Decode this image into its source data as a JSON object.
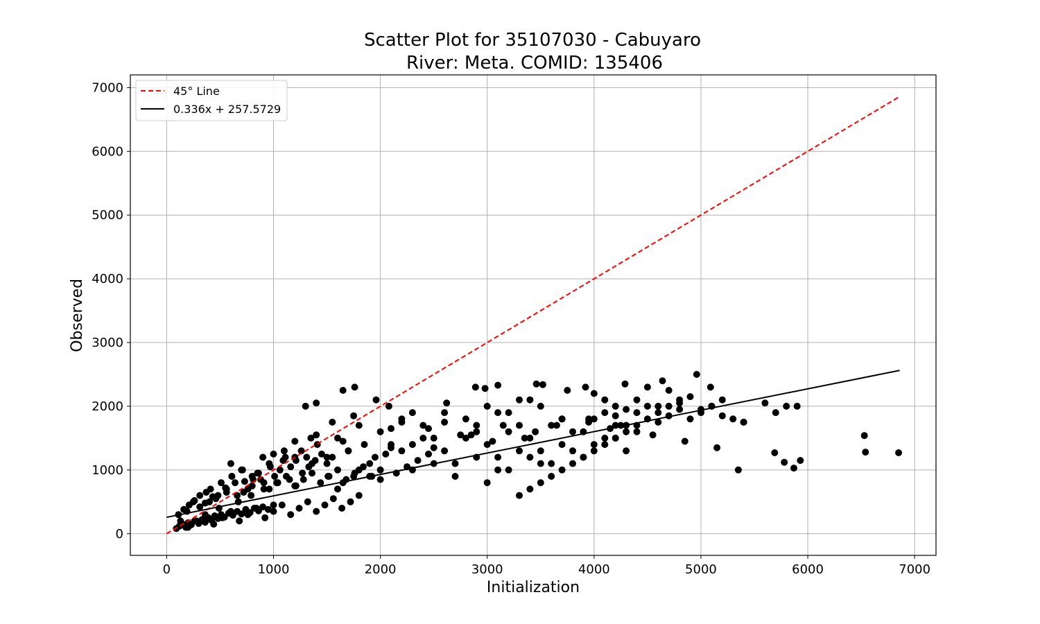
{
  "chart_data": {
    "type": "scatter",
    "title": [
      "Scatter Plot for 35107030 - Cabuyaro",
      "River: Meta. COMID: 135406"
    ],
    "xlabel": "Initialization",
    "ylabel": "Observed",
    "xlim": [
      -340,
      7200
    ],
    "ylim": [
      -340,
      7200
    ],
    "xticks": [
      0,
      1000,
      2000,
      3000,
      4000,
      5000,
      6000,
      7000
    ],
    "yticks": [
      0,
      1000,
      2000,
      3000,
      4000,
      5000,
      6000,
      7000
    ],
    "grid": true,
    "legend": {
      "placement": "top-left",
      "entries": [
        {
          "label": "45° Line",
          "color": "#ff0000",
          "style": "dashed"
        },
        {
          "label": "0.336x + 257.5729",
          "color": "#000000",
          "style": "solid"
        }
      ]
    },
    "lines": [
      {
        "name": "45° Line",
        "x": [
          0,
          6860
        ],
        "y": [
          0,
          6860
        ],
        "color": "#ff0000",
        "style": "dashed"
      },
      {
        "name": "0.336x + 257.5729",
        "x": [
          0,
          6860
        ],
        "y": [
          257.57,
          2562.5
        ],
        "color": "#000000",
        "style": "solid"
      }
    ],
    "series": [
      {
        "color": "#000000",
        "x": [
          90,
          120,
          150,
          180,
          200,
          230,
          260,
          300,
          330,
          360,
          390,
          420,
          450,
          480,
          510,
          540,
          580,
          620,
          660,
          700,
          740,
          780,
          820,
          860,
          900,
          950,
          1000,
          110,
          160,
          210,
          260,
          310,
          360,
          410,
          460,
          510,
          560,
          610,
          660,
          710,
          760,
          810,
          860,
          910,
          960,
          1010,
          1060,
          1110,
          1160,
          1210,
          1260,
          1310,
          1360,
          1410,
          130,
          190,
          250,
          310,
          370,
          430,
          490,
          550,
          610,
          670,
          730,
          790,
          850,
          910,
          970,
          1030,
          1090,
          1150,
          1210,
          1270,
          1330,
          1390,
          1450,
          1510,
          200,
          280,
          360,
          440,
          520,
          600,
          680,
          760,
          840,
          920,
          1000,
          1080,
          1160,
          1240,
          1320,
          1400,
          1480,
          1560,
          1640,
          1720,
          1800,
          400,
          480,
          560,
          640,
          720,
          800,
          880,
          960,
          1040,
          1120,
          1200,
          1280,
          1360,
          1440,
          1520,
          1600,
          1680,
          1760,
          1840,
          1920,
          2000,
          1500,
          1550,
          1600,
          1650,
          1700,
          1750,
          1800,
          1850,
          1900,
          1950,
          2000,
          2050,
          2100,
          2150,
          2200,
          2250,
          2300,
          2350,
          2400,
          2450,
          2500,
          1600,
          1700,
          1800,
          1900,
          2000,
          2100,
          2200,
          2300,
          2400,
          2500,
          2600,
          2700,
          2800,
          2900,
          3000,
          3100,
          3200,
          3300,
          3400,
          3500,
          2500,
          2600,
          2700,
          2800,
          2900,
          3000,
          3100,
          3200,
          3300,
          3400,
          3500,
          3600,
          3700,
          3800,
          3900,
          4000,
          4100,
          4200,
          4300,
          4400,
          2900,
          3000,
          3100,
          3200,
          3300,
          3400,
          3500,
          3600,
          3700,
          3800,
          3900,
          4000,
          4100,
          4200,
          4300,
          4400,
          4500,
          4600,
          4700,
          4800,
          3300,
          3400,
          3500,
          3600,
          3700,
          3800,
          3900,
          4000,
          4100,
          4200,
          4300,
          4400,
          4500,
          4600,
          4700,
          4800,
          4900,
          5000,
          5100,
          5200,
          4000,
          4100,
          4200,
          4300,
          4400,
          4500,
          4600,
          4700,
          4800,
          4900,
          5000,
          5100,
          5200,
          5300,
          5400,
          5600,
          5700,
          5800,
          5900,
          1300,
          1400,
          1760,
          1650,
          1960,
          2080,
          2620,
          2890,
          2980,
          3100,
          3460,
          3520,
          3750,
          3920,
          4290,
          4640,
          4960,
          5090,
          5350,
          5690,
          5870,
          6530,
          6540,
          6850,
          5930,
          5780,
          1200,
          1400,
          1550,
          1750,
          2100,
          2300,
          2600,
          2850,
          3150,
          3450,
          3700,
          3950,
          4200,
          4250,
          600,
          700,
          800,
          900,
          1000,
          1100,
          1200,
          1350,
          1500,
          1650,
          2200,
          2450,
          2750,
          3050,
          3350,
          3650,
          3950,
          4150,
          4550,
          4850,
          5150,
          5400
        ],
        "y": [
          80,
          120,
          150,
          100,
          170,
          140,
          200,
          160,
          220,
          180,
          250,
          210,
          280,
          240,
          300,
          260,
          320,
          290,
          350,
          310,
          380,
          330,
          400,
          360,
          420,
          380,
          450,
          300,
          380,
          450,
          520,
          600,
          480,
          700,
          550,
          800,
          650,
          900,
          600,
          1000,
          700,
          850,
          950,
          800,
          1100,
          900,
          1000,
          1200,
          1050,
          1150,
          1300,
          1200,
          1100,
          1400,
          200,
          350,
          500,
          420,
          650,
          580,
          400,
          720,
          900,
          500,
          820,
          600,
          950,
          700,
          1050,
          800,
          1150,
          850,
          750,
          950,
          1050,
          1150,
          1250,
          900,
          100,
          200,
          300,
          150,
          250,
          350,
          200,
          300,
          400,
          250,
          350,
          450,
          300,
          400,
          500,
          350,
          450,
          550,
          400,
          500,
          600,
          500,
          600,
          700,
          800,
          650,
          750,
          850,
          700,
          800,
          900,
          750,
          850,
          950,
          800,
          900,
          1000,
          850,
          950,
          1050,
          900,
          1000,
          1100,
          1200,
          700,
          800,
          1300,
          900,
          1000,
          1400,
          1100,
          1200,
          850,
          1250,
          1350,
          950,
          1300,
          1050,
          1400,
          1150,
          1500,
          1250,
          1350,
          1500,
          1300,
          1700,
          900,
          1600,
          1400,
          1800,
          1000,
          1700,
          1500,
          1900,
          1100,
          1800,
          1600,
          2000,
          1200,
          1900,
          1700,
          2100,
          1300,
          1100,
          1300,
          900,
          1500,
          1200,
          1400,
          1000,
          1600,
          1300,
          1500,
          1100,
          1700,
          1400,
          1600,
          1200,
          1800,
          1500,
          1700,
          1300,
          1900,
          1700,
          800,
          1900,
          1000,
          2100,
          1200,
          2000,
          1100,
          1800,
          1300,
          1600,
          1400,
          1900,
          1500,
          1700,
          1600,
          2000,
          1750,
          1850,
          1950,
          600,
          700,
          800,
          900,
          1000,
          1100,
          1200,
          1300,
          1400,
          1500,
          1600,
          1700,
          1800,
          1900,
          2000,
          2100,
          1800,
          1900,
          2000,
          2100,
          2200,
          2100,
          2000,
          1950,
          2100,
          2300,
          2000,
          2250,
          2050,
          2150,
          1950,
          2000,
          1850,
          1800,
          1750,
          2050,
          1900,
          2000,
          2000,
          2000,
          2050,
          2300,
          2250,
          2100,
          2000,
          2050,
          2300,
          2280,
          2330,
          2350,
          2340,
          2250,
          2300,
          2350,
          2400,
          2500,
          2300,
          1000,
          1270,
          1030,
          1540,
          1280,
          1270,
          1150,
          1120,
          1200,
          1550,
          1750,
          1850,
          1650,
          1900,
          1750,
          1550,
          1700,
          1600,
          1800,
          1750,
          1850,
          1700,
          1100,
          1000,
          900,
          1200,
          1250,
          1300,
          1450,
          1500,
          1200,
          1450,
          1750,
          1650,
          1550,
          1450,
          1500,
          1700,
          1800,
          1650,
          1550,
          1450,
          1350,
          1750
        ]
      }
    ]
  }
}
